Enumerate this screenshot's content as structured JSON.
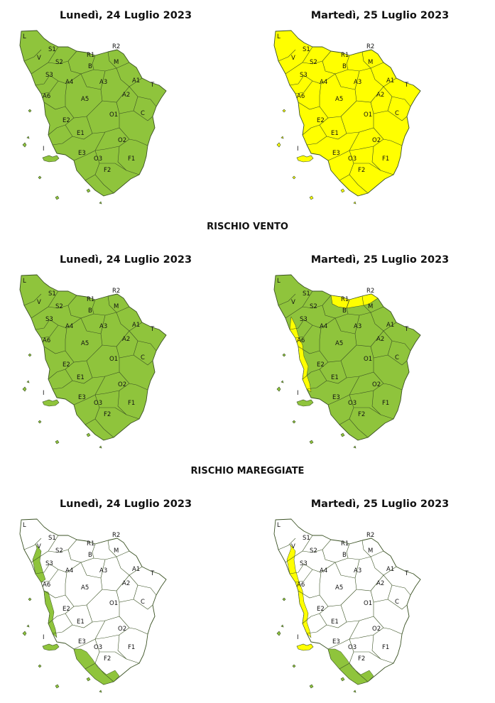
{
  "colors": {
    "green": "#8fc43c",
    "yellow": "#ffff00",
    "white": "#ffffff",
    "border": "#3b5224"
  },
  "zones": [
    "L",
    "V",
    "S1",
    "S2",
    "S3",
    "R1",
    "R2",
    "M",
    "B",
    "A4",
    "A3",
    "A1",
    "A2",
    "A5",
    "A6",
    "T",
    "E2",
    "E1",
    "O1",
    "C",
    "I",
    "E3",
    "O3",
    "O2",
    "F1",
    "F2"
  ],
  "panels": [
    {
      "id": "p0",
      "date": "Lunedì, 24 Luglio 2023",
      "base": "green",
      "coast": []
    },
    {
      "id": "p1",
      "date": "Martedì, 25 Luglio 2023",
      "base": "yellow",
      "coast": []
    },
    {
      "id": "p2",
      "date": "Lunedì, 24 Luglio 2023",
      "base": "green",
      "coast": []
    },
    {
      "id": "p3",
      "date": "Martedì, 25 Luglio 2023",
      "base": "green",
      "yellow_zones": [
        "R1",
        "R2"
      ],
      "coast": [
        {
          "from": "S3",
          "to": "E2",
          "color": "yellow"
        }
      ]
    },
    {
      "id": "p4",
      "date": "Lunedì, 24 Luglio 2023",
      "base": "white",
      "coast": [
        {
          "from": "V",
          "to": "S3",
          "color": "green"
        },
        {
          "from": "A6",
          "to": "E2",
          "color": "green"
        },
        {
          "from": "E3",
          "to": "F2",
          "color": "green"
        },
        {
          "island": "I",
          "color": "green"
        }
      ]
    },
    {
      "id": "p5",
      "date": "Martedì, 25 Luglio 2023",
      "base": "white",
      "coast": [
        {
          "from": "V",
          "to": "E2",
          "color": "yellow"
        },
        {
          "from": "E3",
          "to": "F2",
          "color": "green"
        },
        {
          "island": "I",
          "color": "yellow"
        }
      ]
    }
  ],
  "sections": [
    {
      "title": "RISCHIO VENTO"
    },
    {
      "title": "RISCHIO MAREGGIATE"
    }
  ]
}
